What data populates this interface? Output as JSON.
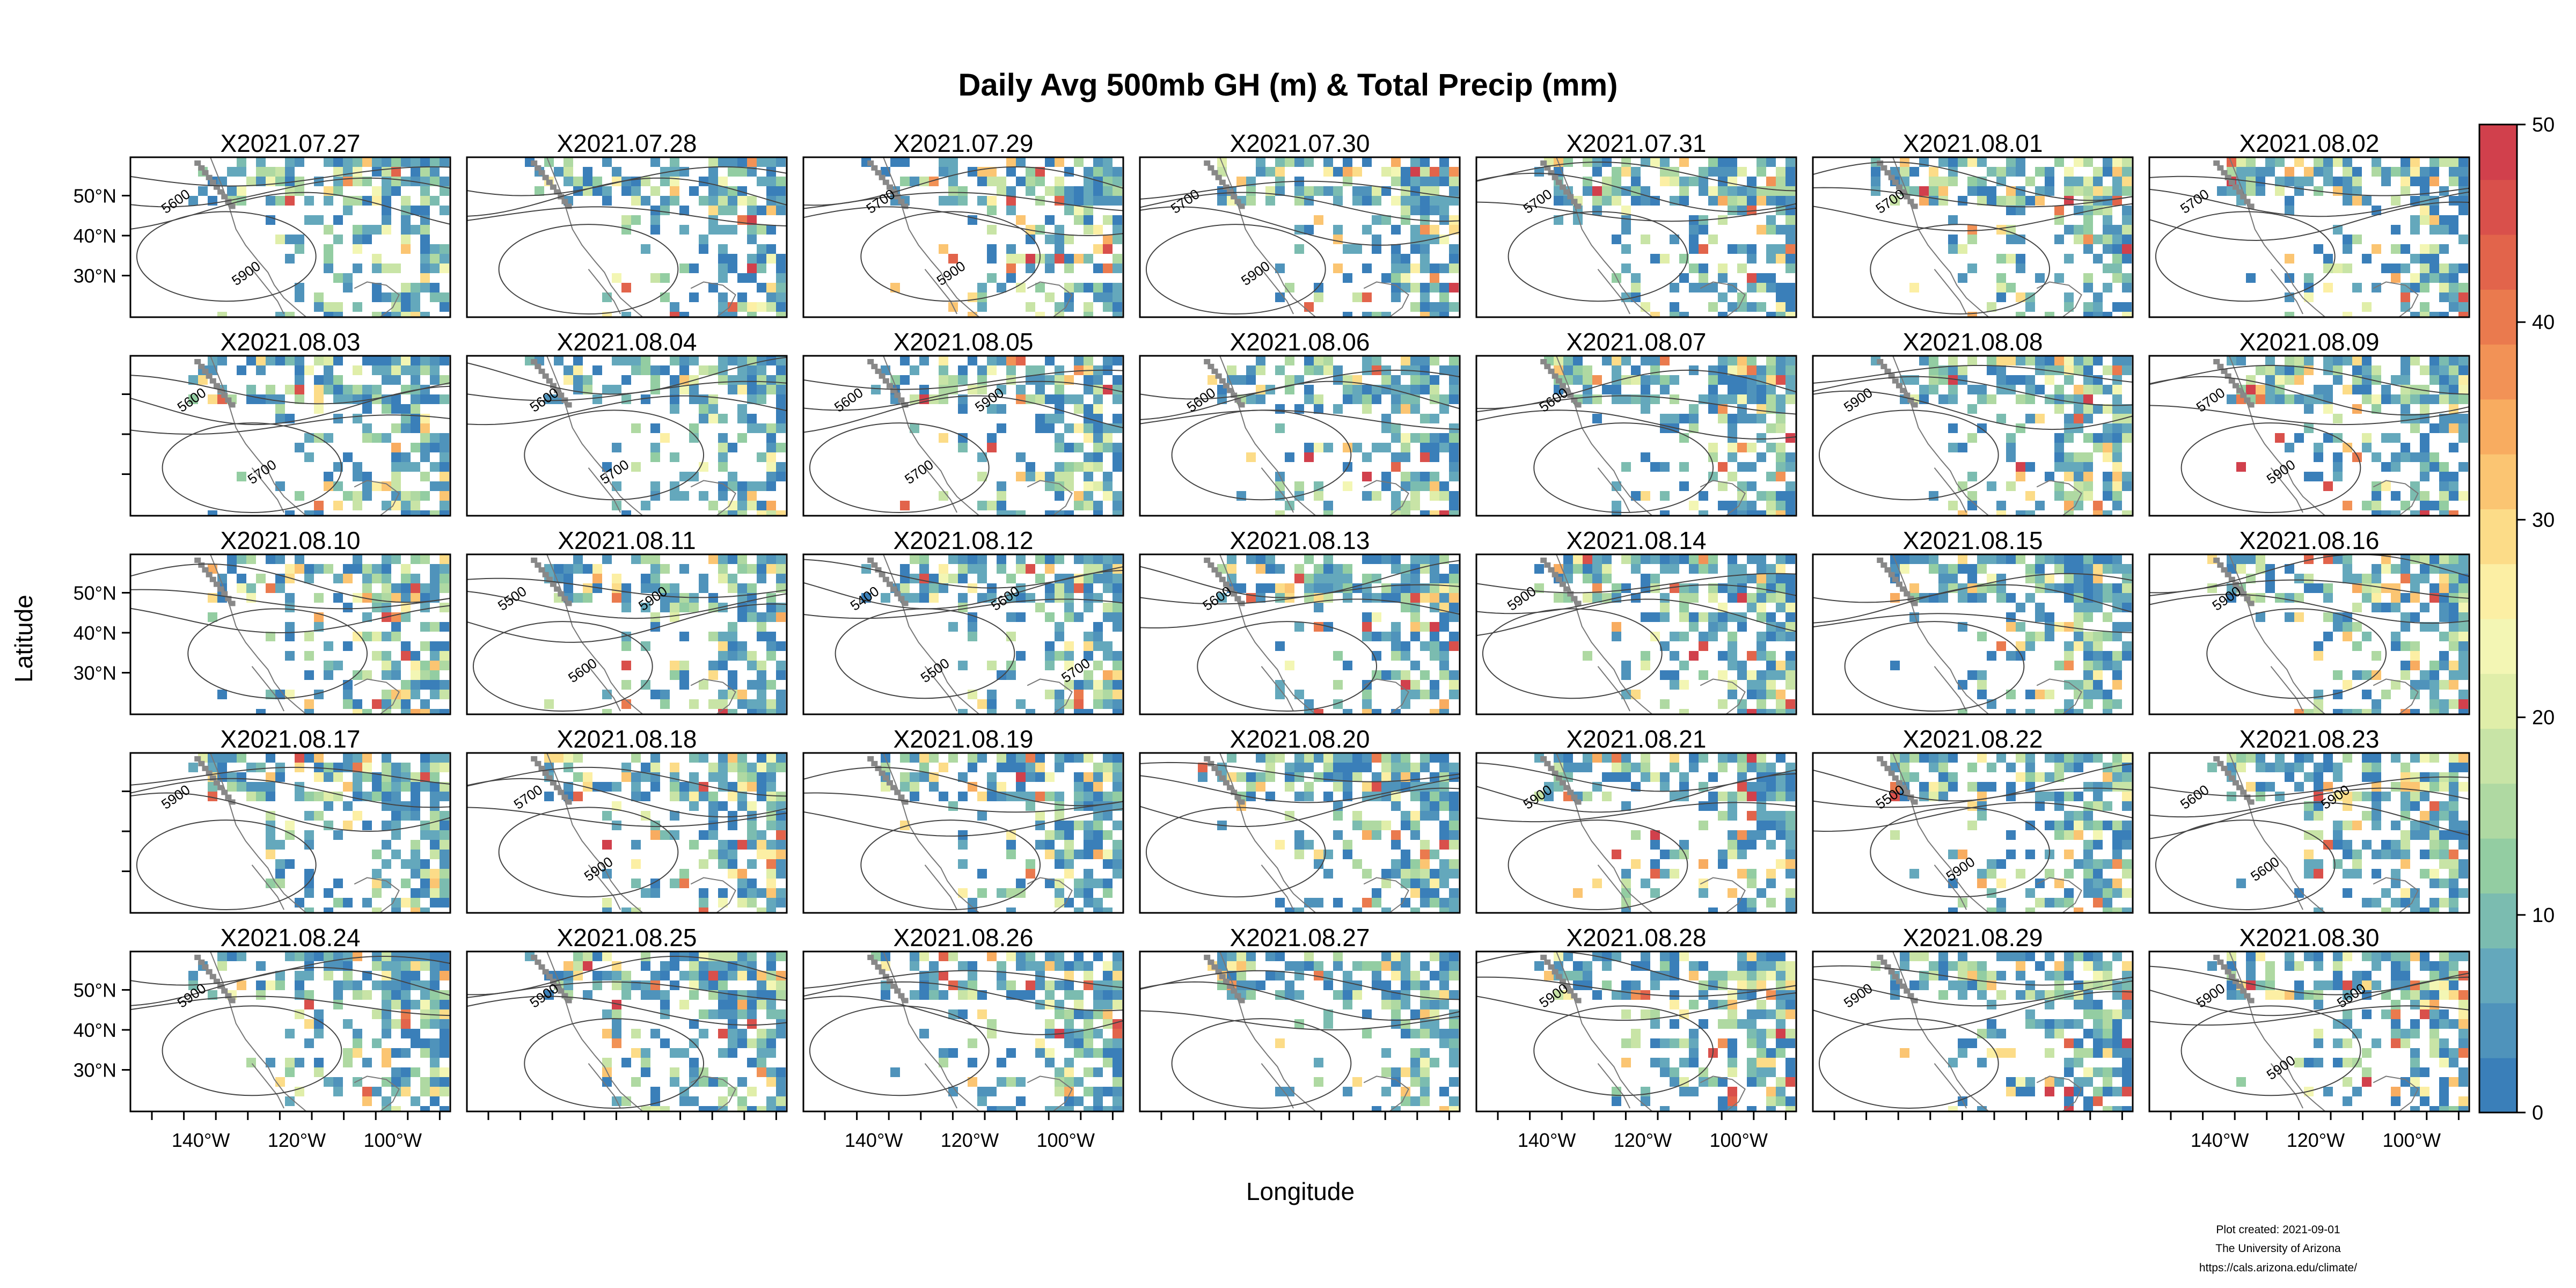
{
  "title": "Daily Avg 500mb GH (m) & Total Precip (mm)",
  "x_axis_label": "Longitude",
  "y_axis_label": "Latitude",
  "lat_ticks": [
    "50°N",
    "40°N",
    "30°N"
  ],
  "lon_ticks": [
    "140°W",
    "120°W",
    "100°W"
  ],
  "panels": [
    "X2021.07.27",
    "X2021.07.28",
    "X2021.07.29",
    "X2021.07.30",
    "X2021.07.31",
    "X2021.08.01",
    "X2021.08.02",
    "X2021.08.03",
    "X2021.08.04",
    "X2021.08.05",
    "X2021.08.06",
    "X2021.08.07",
    "X2021.08.08",
    "X2021.08.09",
    "X2021.08.10",
    "X2021.08.11",
    "X2021.08.12",
    "X2021.08.13",
    "X2021.08.14",
    "X2021.08.15",
    "X2021.08.16",
    "X2021.08.17",
    "X2021.08.18",
    "X2021.08.19",
    "X2021.08.20",
    "X2021.08.21",
    "X2021.08.22",
    "X2021.08.23",
    "X2021.08.24",
    "X2021.08.25",
    "X2021.08.26",
    "X2021.08.27",
    "X2021.08.28",
    "X2021.08.29",
    "X2021.08.30"
  ],
  "contour_labels": [
    [
      "5600",
      "5900"
    ],
    [],
    [
      "5700",
      "5900"
    ],
    [
      "5700",
      "5900"
    ],
    [
      "5700"
    ],
    [
      "5700"
    ],
    [
      "5700"
    ],
    [
      "5600",
      "5700"
    ],
    [
      "5600",
      "5700"
    ],
    [
      "5600",
      "5700",
      "5900"
    ],
    [
      "5600"
    ],
    [
      "5600"
    ],
    [
      "5900"
    ],
    [
      "5700",
      "5900"
    ],
    [],
    [
      "5500",
      "5600",
      "5900"
    ],
    [
      "5400",
      "5500",
      "5600",
      "5700",
      "5900"
    ],
    [
      "5600"
    ],
    [
      "5900"
    ],
    [],
    [
      "5900"
    ],
    [
      "5900"
    ],
    [
      "5700",
      "5900"
    ],
    [],
    [],
    [
      "5900"
    ],
    [
      "5500",
      "5900"
    ],
    [
      "5600",
      "5600",
      "5900"
    ],
    [
      "5900"
    ],
    [
      "5900"
    ],
    [],
    [],
    [
      "5900"
    ],
    [
      "5900"
    ],
    [
      "5900",
      "5900",
      "5600"
    ]
  ],
  "colorbar": {
    "min": 0,
    "max": 50,
    "ticks": [
      "0",
      "10",
      "20",
      "30",
      "40",
      "50"
    ],
    "colors": [
      "#3a7fb9",
      "#4f93bb",
      "#64a8bc",
      "#7bbcb0",
      "#93cda2",
      "#afd9a2",
      "#c8e4a6",
      "#e0eea9",
      "#f3f6b4",
      "#fcefa4",
      "#fcdc88",
      "#fbc572",
      "#f8ac60",
      "#f29256",
      "#ea7a4e",
      "#e2644b",
      "#d9504b",
      "#d1404c"
    ]
  },
  "footer": {
    "line1": "Plot created: 2021-09-01",
    "line2": "The University of Arizona",
    "line3": "https://cals.arizona.edu/climate/"
  }
}
